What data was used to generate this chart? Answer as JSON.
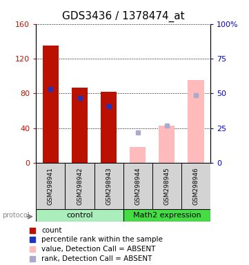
{
  "title": "GDS3436 / 1378474_at",
  "samples": [
    "GSM298941",
    "GSM298942",
    "GSM298943",
    "GSM298944",
    "GSM298945",
    "GSM298946"
  ],
  "red_bars": [
    135,
    87,
    82,
    null,
    null,
    null
  ],
  "blue_squares": [
    85,
    75,
    65,
    null,
    null,
    null
  ],
  "pink_bars": [
    null,
    null,
    null,
    18,
    43,
    95
  ],
  "lavender_squares": [
    null,
    null,
    null,
    35,
    43,
    78
  ],
  "ylim_left": [
    0,
    160
  ],
  "ylim_right": [
    0,
    100
  ],
  "yticks_left": [
    0,
    40,
    80,
    120,
    160
  ],
  "yticks_right": [
    0,
    25,
    50,
    75,
    100
  ],
  "ytick_labels_left": [
    "0",
    "40",
    "80",
    "120",
    "160"
  ],
  "ytick_labels_right": [
    "0",
    "25",
    "50",
    "75",
    "100%"
  ],
  "bar_width": 0.55,
  "red_color": "#bb1100",
  "pink_color": "#ffbbbb",
  "blue_color": "#2233bb",
  "lavender_color": "#aaaacc",
  "control_bg_light": "#bbeecc",
  "control_bg_dark": "#55dd55",
  "title_fontsize": 11,
  "tick_fontsize": 8,
  "legend_fontsize": 7.5
}
